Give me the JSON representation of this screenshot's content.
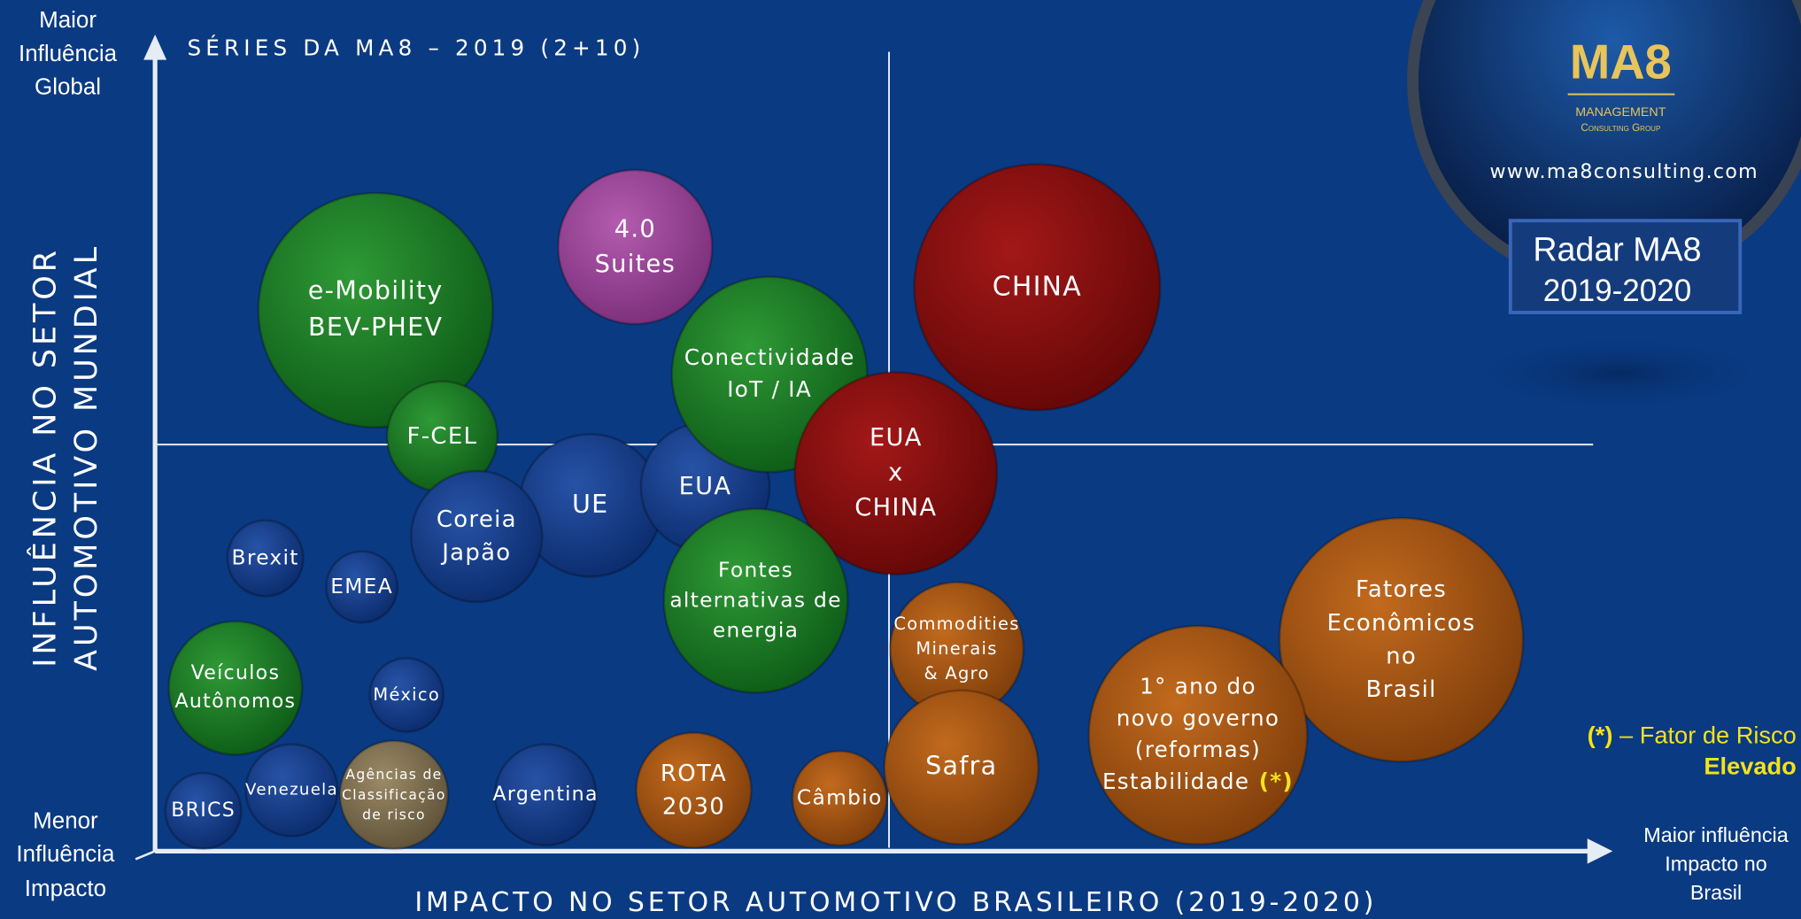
{
  "title": "SÉRIES DA MA8 – 2019 (2+10)",
  "y_axis": {
    "title": [
      "INFLUÊNCIA NO SETOR",
      "AUTOMOTIVO MUNDIAL"
    ],
    "top": [
      "Maior",
      "Influência",
      "Global"
    ],
    "bottom": [
      "Menor",
      "Influência",
      "Impacto"
    ]
  },
  "x_axis": {
    "title": "IMPACTO NO SETOR AUTOMOTIVO BRASILEIRO (2019-2020)",
    "right": [
      "Maior influência",
      "Impacto no",
      "Brasil"
    ]
  },
  "logo": {
    "brand": "MA8",
    "line1": "MANAGEMENT",
    "line2": "Consulting Group",
    "url": "www.ma8consulting.com",
    "badge": [
      "Radar MA8",
      "2019-2020"
    ]
  },
  "legend": {
    "marker": "(*)",
    "text": " – Fator de Risco",
    "emphasis": "Elevado"
  },
  "nodes": [
    {
      "lines": [
        "e-Mobility",
        "BEV-PHEV"
      ]
    },
    {
      "lines": [
        "F-CEL"
      ]
    },
    {
      "lines": [
        "4.0",
        "Suites"
      ]
    },
    {
      "lines": [
        "CHINA"
      ]
    },
    {
      "lines": [
        "UE"
      ]
    },
    {
      "lines": [
        "EUA"
      ]
    },
    {
      "lines": [
        "Coreia",
        "Japão"
      ]
    },
    {
      "lines": [
        "Conectividade",
        "IoT / IA"
      ]
    },
    {
      "lines": [
        "EUA",
        "x",
        "CHINA"
      ]
    },
    {
      "lines": [
        "Fontes",
        "alternativas de",
        "energia"
      ]
    },
    {
      "lines": [
        "Brexit"
      ]
    },
    {
      "lines": [
        "EMEA"
      ]
    },
    {
      "lines": [
        "Commodities",
        "Minerais",
        "& Agro"
      ]
    },
    {
      "lines": [
        "Fatores",
        "Econômicos",
        "no",
        "Brasil"
      ]
    },
    {
      "lines": [
        "1° ano do",
        "novo governo",
        "(reformas)",
        "Estabilidade"
      ],
      "marker": "(*)"
    },
    {
      "lines": [
        "Veículos",
        "Autônomos"
      ]
    },
    {
      "lines": [
        "México"
      ]
    },
    {
      "lines": [
        "Safra"
      ]
    },
    {
      "lines": [
        "ROTA",
        "2030"
      ]
    },
    {
      "lines": [
        "Câmbio"
      ]
    },
    {
      "lines": [
        "Argentina"
      ]
    },
    {
      "lines": [
        "Agências de",
        "Classificação",
        "de risco"
      ]
    },
    {
      "lines": [
        "Venezuela"
      ]
    },
    {
      "lines": [
        "BRICS"
      ]
    }
  ]
}
